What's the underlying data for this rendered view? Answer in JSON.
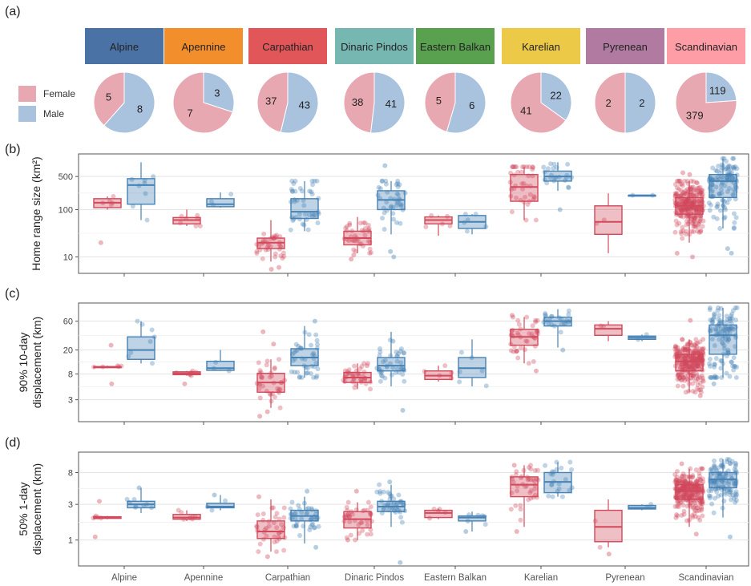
{
  "panel_letters": {
    "a": "(a)",
    "b": "(b)",
    "c": "(c)",
    "d": "(d)"
  },
  "colors": {
    "female": "#d1495b",
    "male": "#4682b4",
    "female_pie": "#e8a8b2",
    "male_pie": "#a9c2de",
    "pop_boxes": [
      "#4a72a5",
      "#f28e2b",
      "#e15759",
      "#76b7b2",
      "#59a14f",
      "#edc948",
      "#b07aa1",
      "#ff9da7"
    ]
  },
  "legend": {
    "female": "Female",
    "male": "Male"
  },
  "populations": [
    "Alpine",
    "Apennine",
    "Carpathian",
    "Dinaric Pindos",
    "Eastern Balkan",
    "Karelian",
    "Pyrenean",
    "Scandinavian"
  ],
  "chart_data": [
    {
      "type": "pie",
      "panel": "(a)",
      "series": [
        {
          "name": "Female",
          "values": [
            5,
            7,
            37,
            38,
            5,
            41,
            2,
            379
          ]
        },
        {
          "name": "Male",
          "values": [
            8,
            3,
            43,
            41,
            6,
            22,
            2,
            119
          ]
        }
      ],
      "categories": [
        "Alpine",
        "Apennine",
        "Carpathian",
        "Dinaric Pindos",
        "Eastern Balkan",
        "Karelian",
        "Pyrenean",
        "Scandinavian"
      ]
    },
    {
      "type": "box",
      "panel": "(b)",
      "ylabel": "Home range size (km²)",
      "yscale": "log",
      "ylim": [
        4.5,
        1500
      ],
      "yticks": [
        "10",
        "100",
        "500"
      ],
      "ytick_values": [
        10,
        100,
        500
      ],
      "categories": [
        "Alpine",
        "Apennine",
        "Carpathian",
        "Dinaric Pindos",
        "Eastern Balkan",
        "Karelian",
        "Pyrenean",
        "Scandinavian"
      ],
      "series": [
        {
          "name": "Female",
          "n": [
            5,
            7,
            37,
            38,
            5,
            41,
            2,
            379
          ],
          "boxes": [
            [
              100,
              110,
              140,
              170,
              190
            ],
            [
              45,
              50,
              60,
              68,
              100
            ],
            [
              8,
              15,
              20,
              25,
              60
            ],
            [
              12,
              18,
              25,
              35,
              70
            ],
            [
              28,
              50,
              60,
              70,
              75
            ],
            [
              60,
              150,
              300,
              550,
              800
            ],
            [
              12,
              30,
              55,
              120,
              220
            ],
            [
              20,
              80,
              120,
              180,
              400
            ]
          ],
          "outliers": [
            [
              20
            ],
            [],
            [
              5.5,
              6
            ],
            [
              9,
              11
            ],
            [],
            [],
            [],
            [
              10,
              12,
              550,
              600
            ]
          ]
        },
        {
          "name": "Male",
          "n": [
            8,
            3,
            43,
            41,
            6,
            22,
            2,
            119
          ],
          "boxes": [
            [
              60,
              130,
              330,
              450,
              1000
            ],
            [
              110,
              115,
              130,
              170,
              230
            ],
            [
              35,
              65,
              90,
              170,
              400
            ],
            [
              30,
              100,
              160,
              250,
              400
            ],
            [
              30,
              40,
              55,
              75,
              80
            ],
            [
              250,
              400,
              500,
              650,
              1000
            ],
            [
              200,
              200,
              200,
              200,
              200
            ],
            [
              40,
              180,
              400,
              550,
              1200
            ]
          ],
          "outliers": [
            [],
            [],
            [],
            [
              10,
              13,
              850
            ],
            [],
            [
              100
            ],
            [],
            [
              12,
              15
            ]
          ]
        }
      ]
    },
    {
      "type": "box",
      "panel": "(c)",
      "ylabel": "90% 10-day displacement (km)",
      "yscale": "log",
      "ylim": [
        1.3,
        120
      ],
      "yticks": [
        "3",
        "8",
        "20",
        "60"
      ],
      "ytick_values": [
        3,
        8,
        20,
        60
      ],
      "categories": [
        "Alpine",
        "Apennine",
        "Carpathian",
        "Dinaric Pindos",
        "Eastern Balkan",
        "Karelian",
        "Pyrenean",
        "Scandinavian"
      ],
      "series": [
        {
          "name": "Female",
          "n": [
            5,
            7,
            37,
            38,
            5,
            41,
            2,
            379
          ],
          "boxes": [
            [
              10,
              10.2,
              10.5,
              10.6,
              11
            ],
            [
              7.5,
              7.8,
              8.2,
              8.7,
              9
            ],
            [
              2.2,
              4,
              5.8,
              8.2,
              14
            ],
            [
              4.5,
              5.8,
              7,
              8.5,
              12
            ],
            [
              6,
              6.5,
              7.5,
              9,
              11
            ],
            [
              12,
              24,
              33,
              44,
              70
            ],
            [
              28,
              35,
              45,
              52,
              60
            ],
            [
              4,
              9,
              13,
              17,
              30
            ]
          ],
          "outliers": [
            [
              5.5,
              24
            ],
            [
              5.5
            ],
            [
              1.6,
              1.9,
              25,
              40
            ],
            [
              11
            ],
            [],
            [
              9,
              75
            ],
            [],
            [
              3.5,
              62
            ]
          ]
        },
        {
          "name": "Male",
          "n": [
            8,
            3,
            43,
            41,
            6,
            22,
            2,
            119
          ],
          "boxes": [
            [
              12,
              14,
              20,
              33,
              60
            ],
            [
              9,
              9.2,
              10,
              13,
              20
            ],
            [
              7,
              11,
              15,
              21,
              50
            ],
            [
              5,
              9,
              11,
              15,
              40
            ],
            [
              5,
              7,
              10,
              15,
              30
            ],
            [
              22,
              50,
              60,
              70,
              95
            ],
            [
              28,
              30,
              32,
              34,
              36
            ],
            [
              7,
              17,
              35,
              52,
              100
            ]
          ],
          "outliers": [
            [],
            [],
            [
              60
            ],
            [
              2,
              28
            ],
            [],
            [
              20
            ],
            [],
            [
              5.5
            ]
          ]
        }
      ]
    },
    {
      "type": "box",
      "panel": "(d)",
      "ylabel": "50% 1-day displacement (km)",
      "yscale": "log",
      "ylim": [
        0.45,
        15
      ],
      "yticks": [
        "1",
        "3",
        "8"
      ],
      "ytick_values": [
        1,
        3,
        8
      ],
      "categories": [
        "Alpine",
        "Apennine",
        "Carpathian",
        "Dinaric Pindos",
        "Eastern Balkan",
        "Karelian",
        "Pyrenean",
        "Scandinavian"
      ],
      "series": [
        {
          "name": "Female",
          "n": [
            5,
            7,
            37,
            38,
            5,
            41,
            2,
            379
          ],
          "boxes": [
            [
              1.9,
              1.95,
              2.0,
              2.05,
              2.1
            ],
            [
              1.8,
              1.9,
              2.0,
              2.2,
              2.5
            ],
            [
              0.7,
              1.05,
              1.3,
              1.8,
              3.5
            ],
            [
              1.0,
              1.45,
              1.9,
              2.4,
              3.2
            ],
            [
              1.9,
              2.0,
              2.3,
              2.5,
              2.6
            ],
            [
              1.5,
              3.8,
              5.5,
              7.0,
              10
            ],
            [
              0.8,
              0.95,
              1.5,
              2.5,
              3.5
            ],
            [
              1.5,
              3.5,
              4.5,
              5.5,
              9.0
            ]
          ],
          "outliers": [
            [
              1.1,
              3.3
            ],
            [],
            [
              0.6,
              3.8
            ],
            [
              1.0,
              4.5
            ],
            [],
            [
              1.3,
              10
            ],
            [
              0.65
            ],
            [
              1.2,
              10.5
            ]
          ]
        },
        {
          "name": "Male",
          "n": [
            8,
            3,
            43,
            41,
            6,
            22,
            2,
            119
          ],
          "boxes": [
            [
              2.3,
              2.7,
              3.0,
              3.3,
              5.0
            ],
            [
              2.5,
              2.7,
              2.8,
              3.1,
              4.0
            ],
            [
              0.9,
              1.8,
              2.1,
              2.5,
              3.8
            ],
            [
              1.5,
              2.4,
              2.8,
              3.3,
              5.5
            ],
            [
              1.3,
              1.8,
              2.0,
              2.1,
              2.4
            ],
            [
              3.8,
              4.3,
              6.0,
              8.0,
              11
            ],
            [
              2.5,
              2.6,
              2.7,
              2.9,
              3.0
            ],
            [
              2.0,
              5.0,
              6.5,
              8.0,
              12
            ]
          ],
          "outliers": [
            [
              5.0
            ],
            [
              4.0
            ],
            [
              0.8,
              4.5
            ],
            [
              0.5,
              6.0
            ],
            [
              1.3
            ],
            [],
            [],
            [
              1.1
            ]
          ]
        }
      ]
    }
  ]
}
